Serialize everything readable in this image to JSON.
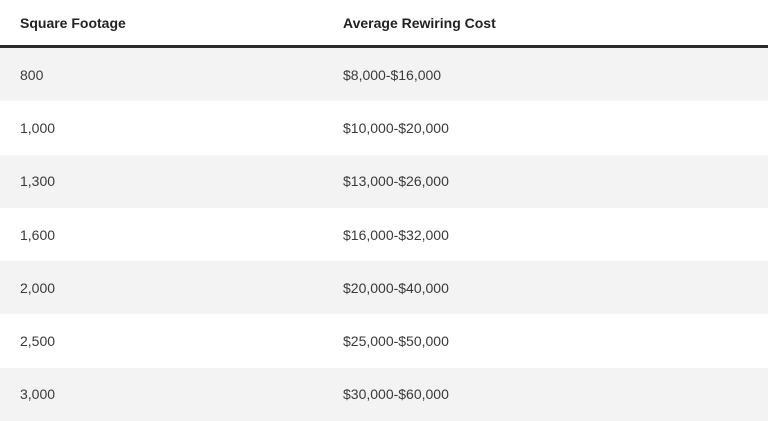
{
  "table": {
    "headers": [
      "Square Footage",
      "Average Rewiring Cost"
    ],
    "rows": [
      [
        "800",
        "$8,000-$16,000"
      ],
      [
        "1,000",
        "$10,000-$20,000"
      ],
      [
        "1,300",
        "$13,000-$26,000"
      ],
      [
        "1,600",
        "$16,000-$32,000"
      ],
      [
        "2,000",
        "$20,000-$40,000"
      ],
      [
        "2,500",
        "$25,000-$50,000"
      ],
      [
        "3,000",
        "$30,000-$60,000"
      ]
    ]
  }
}
